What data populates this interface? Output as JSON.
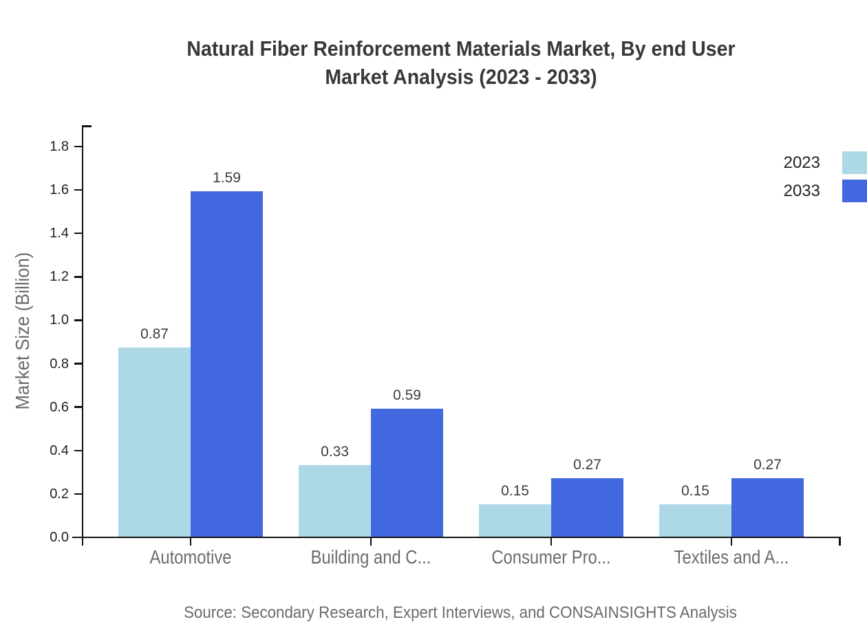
{
  "title": {
    "line1": "Natural Fiber Reinforcement Materials Market, By end User",
    "line2": "Market Analysis (2023 - 2033)"
  },
  "source_note": "Source: Secondary Research, Expert Interviews, and CONSAINSIGHTS Analysis",
  "colors": {
    "series_2023": "#ADD8E6",
    "series_2033": "#4268E0",
    "axis": "#111111",
    "muted_text": "#6b6b6b",
    "title_text": "#383838"
  },
  "chart_data": {
    "type": "bar",
    "categories": [
      "Automotive",
      "Building and C...",
      "Consumer Pro...",
      "Textiles and A..."
    ],
    "series": [
      {
        "name": "2023",
        "color": "#ADD8E6",
        "values": [
          0.87,
          0.33,
          0.15,
          0.15
        ]
      },
      {
        "name": "2033",
        "color": "#4268E0",
        "values": [
          1.59,
          0.59,
          0.27,
          0.27
        ]
      }
    ],
    "title": "Natural Fiber Reinforcement Materials Market, By end User Market Analysis (2023 - 2033)",
    "xlabel": "",
    "ylabel": "Market Size (Billion)",
    "ylim": [
      0,
      1.9
    ],
    "yticks": [
      0.0,
      0.2,
      0.4,
      0.6,
      0.8,
      1.0,
      1.2,
      1.4,
      1.6,
      1.8
    ],
    "grid": false,
    "legend_position": "top-right",
    "value_labels": true
  }
}
